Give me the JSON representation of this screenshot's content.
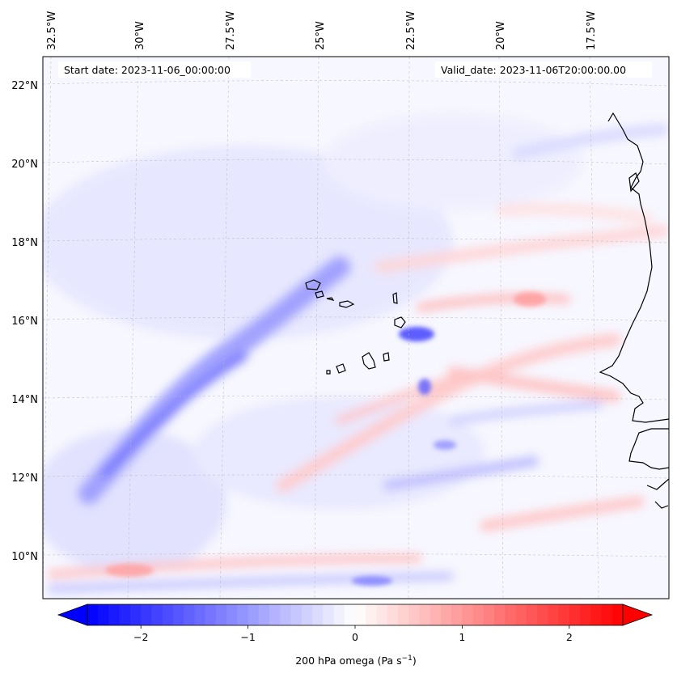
{
  "map": {
    "start_label": "Start date: 2023-11-06_00:00:00",
    "valid_label": "Valid_date: 2023-11-06T20:00:00.00",
    "lon_labels": [
      "32.5°W",
      "30°W",
      "27.5°W",
      "25°W",
      "22.5°W",
      "20°W",
      "17.5°W"
    ],
    "lat_labels": [
      "22°N",
      "20°N",
      "18°N",
      "16°N",
      "14°N",
      "12°N",
      "10°N"
    ],
    "variable": "200 hPa omega",
    "field_colors": {
      "negative": "#0000ff",
      "zero": "#ffffff",
      "positive": "#ff0000"
    }
  },
  "colorbar": {
    "ticks": [
      "−2",
      "−1",
      "0",
      "1",
      "2"
    ],
    "tick_values": [
      -2,
      -1,
      0,
      1,
      2
    ],
    "range": [
      -2.5,
      2.5
    ],
    "label_main": "200 hPa omega (Pa s",
    "label_exp": "−1",
    "label_close": ")"
  }
}
